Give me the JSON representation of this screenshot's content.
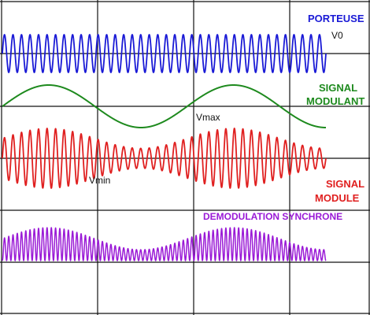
{
  "chart_data": {
    "type": "line",
    "grid": true,
    "panels": [
      {
        "name": "PORTEUSE",
        "color": "#1a1ad6",
        "kind": "carrier",
        "amplitude": 1,
        "carrier_cycles": 38,
        "annotation": "V0"
      },
      {
        "name": "SIGNAL MODULANT",
        "label_lines": [
          "SIGNAL",
          "MODULANT"
        ],
        "color": "#1e8a1e",
        "kind": "modulating",
        "amplitude": 1,
        "modulating_cycles": 1.75
      },
      {
        "name": "SIGNAL MODULE",
        "label_lines": [
          "SIGNAL",
          "MODULE"
        ],
        "color": "#e02020",
        "kind": "am",
        "carrier_cycles": 38,
        "modulating_cycles": 1.75,
        "modulation_index": 0.5,
        "annotations": [
          "Vmax",
          "Vmin"
        ]
      },
      {
        "name": "DEMODULATION SYNCHRONE",
        "color": "#9a1ad6",
        "kind": "demodulated",
        "carrier_cycles": 38,
        "modulating_cycles": 1.75,
        "modulation_index": 0.5
      }
    ]
  },
  "labels": {
    "porteuse": "PORTEUSE",
    "v0": "V0",
    "signal_modulant_1": "SIGNAL",
    "signal_modulant_2": "MODULANT",
    "vmax": "Vmax",
    "vmin": "Vmin",
    "signal_module_1": "SIGNAL",
    "signal_module_2": "MODULE",
    "demodulation": "DEMODULATION SYNCHRONE"
  }
}
